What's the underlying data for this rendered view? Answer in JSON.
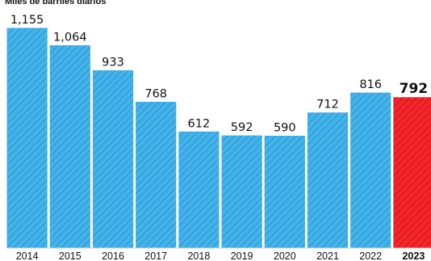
{
  "chart_data": {
    "type": "bar",
    "subtitle": "Miles de barriles diarios",
    "categories": [
      "2014",
      "2015",
      "2016",
      "2017",
      "2018",
      "2019",
      "2020",
      "2021",
      "2022",
      "2023"
    ],
    "values": [
      1155,
      1064,
      933,
      768,
      612,
      592,
      590,
      712,
      816,
      792
    ],
    "value_labels": [
      "1,155",
      "1,064",
      "933",
      "768",
      "612",
      "592",
      "590",
      "712",
      "816",
      "792"
    ],
    "highlight_category": "2023",
    "ylim": [
      0,
      1155
    ],
    "grid": false,
    "legend": "none"
  },
  "colors": {
    "bar": "#43b3ea",
    "bar_stripe": "#2b9ad6",
    "bar_edge": "#ffffff",
    "highlight": "#f2262b",
    "highlight_stripe": "#d81419",
    "baseline": "#d4d4d4",
    "text": "#111111"
  }
}
